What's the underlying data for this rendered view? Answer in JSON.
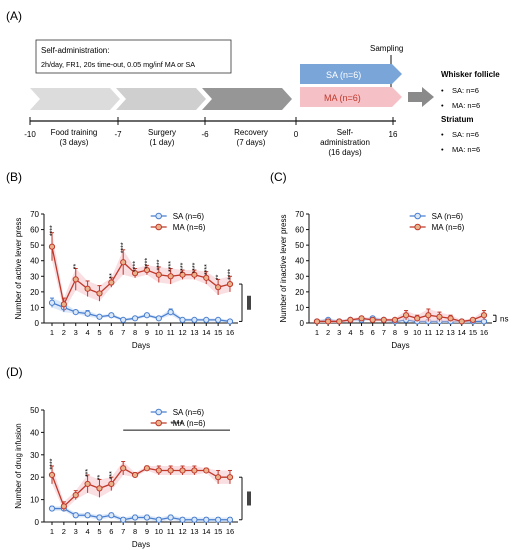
{
  "timeline": {
    "label": "(A)",
    "box_lines": [
      "Self-administration:",
      "2h/day, FR1, 20s time-out, 0.05 mg/inf MA or SA"
    ],
    "sampling": "Sampling",
    "ticks": [
      "-10",
      "-7",
      "-6",
      "0",
      "16"
    ],
    "phases": [
      {
        "lines": [
          "Food training",
          "(3 days)"
        ]
      },
      {
        "lines": [
          "Surgery",
          "(1 day)"
        ]
      },
      {
        "lines": [
          "Recovery",
          "(7 days)"
        ]
      },
      {
        "lines": [
          "Self-",
          "administration",
          "(16 days)"
        ]
      }
    ],
    "groups": {
      "sa": "SA (n=6)",
      "ma": "MA (n=6)"
    },
    "outcomes": [
      {
        "title": "Whisker follicle",
        "items": [
          "SA: n=6",
          "MA: n=6"
        ]
      },
      {
        "title": "Striatum",
        "items": [
          "SA: n=6",
          "MA: n=6"
        ]
      }
    ],
    "colors": {
      "sa_bar": "#7aa5d8",
      "ma_bar": "#f5c0c6",
      "arrow_light": "#dcdcdc",
      "arrow_mid": "#bdbdbd",
      "arrow_dark": "#969696"
    }
  },
  "chart_data": [
    {
      "panel": "(B)",
      "type": "line",
      "xlabel": "Days",
      "ylabel": "Number of active lever press",
      "ylim": [
        0,
        70
      ],
      "yticks": [
        0,
        10,
        20,
        30,
        40,
        50,
        60,
        70
      ],
      "x": [
        1,
        2,
        3,
        4,
        5,
        6,
        7,
        8,
        9,
        10,
        11,
        12,
        13,
        14,
        15,
        16
      ],
      "series": [
        {
          "name": "SA (n=6)",
          "color": "#4a7fd0",
          "values": [
            13,
            10,
            7,
            6,
            4,
            5,
            2,
            3,
            5,
            3,
            7,
            2,
            2,
            2,
            2,
            1
          ],
          "errors": [
            3,
            3,
            1,
            2,
            1,
            1,
            1,
            1,
            1,
            1,
            2,
            1,
            1,
            1,
            1,
            1
          ]
        },
        {
          "name": "MA (n=6)",
          "color": "#c0392b",
          "values": [
            49,
            12,
            28,
            22,
            19,
            26,
            39,
            32,
            34,
            31,
            30,
            31,
            31,
            29,
            23,
            25
          ],
          "errors": [
            9,
            4,
            7,
            5,
            5,
            3,
            8,
            3,
            3,
            5,
            5,
            3,
            3,
            4,
            5,
            5
          ]
        }
      ],
      "annotations": [
        "****",
        "",
        "**",
        "",
        "",
        "**",
        "****",
        "****",
        "****",
        "****",
        "****",
        "****",
        "****",
        "****",
        "**",
        "****"
      ],
      "group_sig": "",
      "legend": "top-right"
    },
    {
      "panel": "(C)",
      "type": "line",
      "xlabel": "Days",
      "ylabel": "Number of inactive lever press",
      "ylim": [
        0,
        70
      ],
      "yticks": [
        0,
        10,
        20,
        30,
        40,
        50,
        60,
        70
      ],
      "x": [
        1,
        2,
        3,
        4,
        5,
        6,
        7,
        8,
        9,
        10,
        11,
        12,
        13,
        14,
        15,
        16
      ],
      "series": [
        {
          "name": "SA (n=6)",
          "color": "#4a7fd0",
          "values": [
            1,
            2,
            1,
            2,
            2,
            3,
            2,
            1,
            2,
            1,
            1,
            1,
            1,
            1,
            1,
            1
          ],
          "errors": [
            1,
            1,
            1,
            1,
            1,
            1,
            1,
            1,
            1,
            1,
            1,
            1,
            1,
            1,
            1,
            1
          ]
        },
        {
          "name": "MA (n=6)",
          "color": "#c0392b",
          "values": [
            1,
            1,
            1,
            2,
            3,
            2,
            2,
            2,
            5,
            3,
            5,
            4,
            3,
            1,
            2,
            5
          ],
          "errors": [
            1,
            1,
            1,
            1,
            1,
            1,
            1,
            1,
            3,
            2,
            4,
            3,
            2,
            1,
            1,
            3
          ]
        }
      ],
      "annotations": [],
      "group_sig": "ns",
      "legend": "top-right"
    },
    {
      "panel": "(D)",
      "type": "line",
      "xlabel": "Days",
      "ylabel": "Number of drug infusion",
      "ylim": [
        0,
        50
      ],
      "yticks": [
        0,
        10,
        20,
        30,
        40,
        50
      ],
      "x": [
        1,
        2,
        3,
        4,
        5,
        6,
        7,
        8,
        9,
        10,
        11,
        12,
        13,
        14,
        15,
        16
      ],
      "series": [
        {
          "name": "SA (n=6)",
          "color": "#4a7fd0",
          "values": [
            6,
            6,
            3,
            3,
            2,
            3,
            1,
            2,
            2,
            1,
            2,
            1,
            1,
            1,
            1,
            1
          ],
          "errors": [
            1,
            1,
            1,
            1,
            1,
            1,
            1,
            1,
            1,
            1,
            1,
            1,
            1,
            1,
            1,
            1
          ]
        },
        {
          "name": "MA (n=6)",
          "color": "#c0392b",
          "values": [
            21,
            7,
            12,
            17,
            15,
            17,
            24,
            21,
            24,
            23,
            23,
            23,
            23,
            23,
            20,
            20
          ],
          "errors": [
            4,
            2,
            2,
            4,
            4,
            3,
            3,
            1,
            1,
            2,
            2,
            2,
            2,
            1,
            3,
            3
          ]
        }
      ],
      "annotations": [
        "****",
        "",
        "",
        "***",
        "**",
        "***"
      ],
      "bracket": {
        "from": 7,
        "to": 16,
        "label": "****"
      },
      "group_sig": "",
      "legend": "top-right"
    }
  ]
}
